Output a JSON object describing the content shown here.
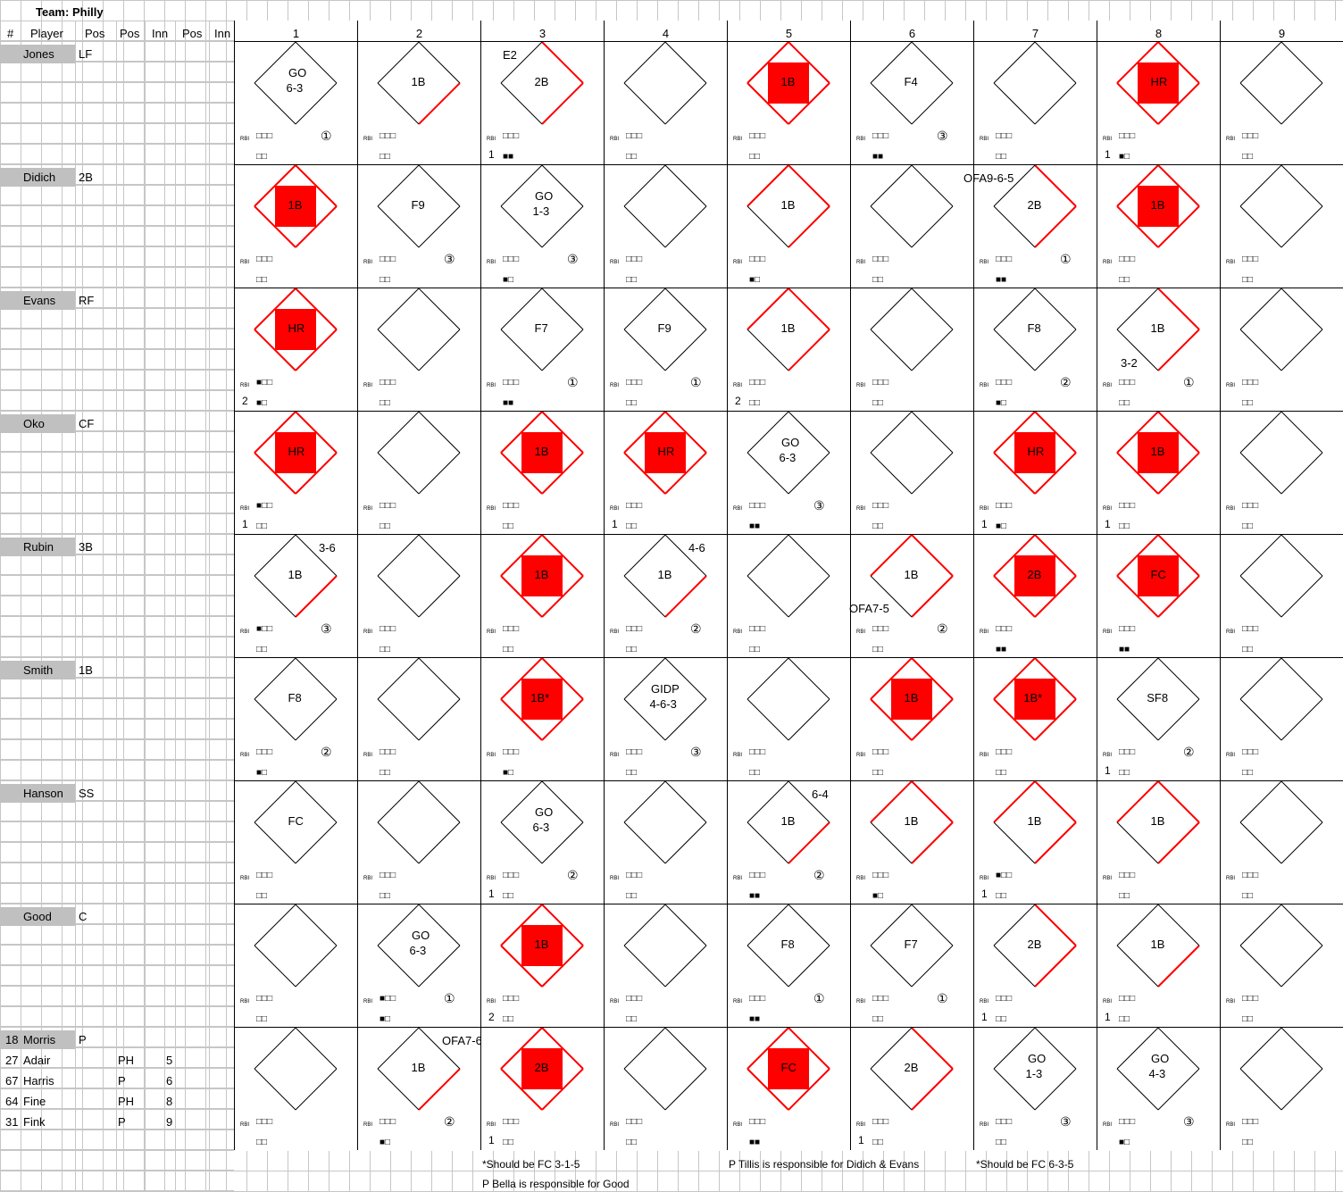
{
  "team": {
    "label": "Team:",
    "name": "Philly"
  },
  "headers": {
    "num": "#",
    "player": "Player",
    "pos1": "Pos",
    "pos2": "Pos",
    "inn1": "Inn",
    "pos3": "Pos",
    "inn2": "Inn"
  },
  "innings": [
    "1",
    "2",
    "3",
    "4",
    "5",
    "6",
    "7",
    "8",
    "9"
  ],
  "players": [
    {
      "name": "Jones",
      "pos": "LF"
    },
    {
      "name": "Didich",
      "pos": "2B"
    },
    {
      "name": "Evans",
      "pos": "RF"
    },
    {
      "name": "Oko",
      "pos": "CF"
    },
    {
      "name": "Rubin",
      "pos": "3B"
    },
    {
      "name": "Smith",
      "pos": "1B"
    },
    {
      "name": "Hanson",
      "pos": "SS"
    },
    {
      "name": "Good",
      "pos": "C"
    },
    {
      "name": "Morris",
      "num": "18",
      "pos": "P"
    }
  ],
  "subs": [
    {
      "num": "27",
      "name": "Adair",
      "pos": "PH",
      "inn": "5"
    },
    {
      "num": "67",
      "name": "Harris",
      "pos": "P",
      "inn": "6"
    },
    {
      "num": "64",
      "name": "Fine",
      "pos": "PH",
      "inn": "8"
    },
    {
      "num": "31",
      "name": "Fink",
      "pos": "P",
      "inn": "9"
    }
  ],
  "symbols": {
    "rbi": "RBI",
    "box3": "□□□",
    "box2": "□□"
  },
  "colors": {
    "red": "#ff0000",
    "header_gray": "#c0c0c0",
    "grid": "#c6c6c6"
  },
  "cells": [
    [
      {
        "l": "GO",
        "l2": "6-3",
        "out": "①"
      },
      {
        "l": "1B",
        "bases": 1
      },
      {
        "l": "2B",
        "bases": 2,
        "note": "E2",
        "strikes": "■■",
        "rbinum": "1"
      },
      {},
      {
        "l": "1B",
        "bases": 4,
        "fill": true
      },
      {
        "l": "F4",
        "out": "③",
        "strikes": "■■"
      },
      {},
      {
        "l": "HR",
        "bases": 4,
        "fill": true,
        "strikes": "■□",
        "rbinum": "1"
      },
      {}
    ],
    [
      {
        "l": "1B",
        "bases": 4,
        "fill": true
      },
      {
        "l": "F9",
        "out": "③"
      },
      {
        "l": "GO",
        "l2": "1-3",
        "out": "③",
        "strikes": "■□"
      },
      {},
      {
        "l": "1B",
        "bases": 3,
        "strikes": "■□"
      },
      {},
      {
        "l": "2B",
        "bases": 2,
        "out": "①",
        "note": "OFA9-6-5",
        "strikes": "■■"
      },
      {
        "l": "1B",
        "bases": 4,
        "fill": true
      },
      {}
    ],
    [
      {
        "l": "HR",
        "bases": 4,
        "fill": true,
        "balls": "■□□",
        "strikes": "■□",
        "rbinum": "2"
      },
      {},
      {
        "l": "F7",
        "out": "①",
        "strikes": "■■"
      },
      {
        "l": "F9",
        "out": "①"
      },
      {
        "l": "1B",
        "bases": 3,
        "rbinum": "2"
      },
      {},
      {
        "l": "F8",
        "out": "②",
        "strikes": "■□"
      },
      {
        "l": "1B",
        "bases": 2,
        "out": "①",
        "note": "3-2"
      },
      {}
    ],
    [
      {
        "l": "HR",
        "bases": 4,
        "fill": true,
        "balls": "■□□",
        "rbinum": "1"
      },
      {},
      {
        "l": "1B",
        "bases": 4,
        "fill": true
      },
      {
        "l": "HR",
        "bases": 4,
        "fill": true,
        "rbinum": "1"
      },
      {
        "l": "GO",
        "l2": "6-3",
        "out": "③",
        "strikes": "■■"
      },
      {},
      {
        "l": "HR",
        "bases": 4,
        "fill": true,
        "strikes": "■□",
        "rbinum": "1"
      },
      {
        "l": "1B",
        "bases": 4,
        "fill": true,
        "rbinum": "1"
      },
      {}
    ],
    [
      {
        "l": "1B",
        "bases": 1,
        "out": "③",
        "note": "3-6",
        "balls": "■□□"
      },
      {},
      {
        "l": "1B",
        "bases": 4,
        "fill": true
      },
      {
        "l": "1B",
        "bases": 1,
        "out": "②",
        "note": "4-6"
      },
      {},
      {
        "l": "1B",
        "bases": 3,
        "out": "②",
        "note": "OFA7-5"
      },
      {
        "l": "2B",
        "bases": 4,
        "fill": true,
        "strikes": "■■"
      },
      {
        "l": "FC",
        "bases": 4,
        "fill": true,
        "strikes": "■■"
      },
      {}
    ],
    [
      {
        "l": "F8",
        "out": "②",
        "strikes": "■□"
      },
      {},
      {
        "l": "1B*",
        "bases": 4,
        "fill": true,
        "strikes": "■□"
      },
      {
        "l": "GIDP",
        "l2": "4-6-3",
        "out": "③"
      },
      {},
      {
        "l": "1B",
        "bases": 4,
        "fill": true
      },
      {
        "l": "1B*",
        "bases": 4,
        "fill": true
      },
      {
        "l": "SF8",
        "out": "②",
        "rbinum": "1"
      },
      {}
    ],
    [
      {
        "l": "FC"
      },
      {},
      {
        "l": "GO",
        "l2": "6-3",
        "out": "②",
        "rbinum": "1"
      },
      {},
      {
        "l": "1B",
        "bases": 1,
        "out": "②",
        "note": "6-4",
        "strikes": "■■"
      },
      {
        "l": "1B",
        "bases": 3,
        "strikes": "■□"
      },
      {
        "l": "1B",
        "bases": 3,
        "balls": "■□□",
        "rbinum": "1"
      },
      {
        "l": "1B",
        "bases": 3
      },
      {}
    ],
    [
      {},
      {
        "l": "GO",
        "l2": "6-3",
        "out": "①",
        "balls": "■□□",
        "strikes": "■□"
      },
      {
        "l": "1B",
        "bases": 4,
        "fill": true,
        "rbinum": "2"
      },
      {},
      {
        "l": "F8",
        "out": "①",
        "strikes": "■■"
      },
      {
        "l": "F7",
        "out": "①"
      },
      {
        "l": "2B",
        "bases": 2,
        "rbinum": "1"
      },
      {
        "l": "1B",
        "bases": 1,
        "rbinum": "1"
      },
      {}
    ],
    [
      {},
      {
        "l": "1B",
        "bases": 1,
        "out": "②",
        "note": "OFA7-6",
        "strikes": "■□"
      },
      {
        "l": "2B",
        "bases": 4,
        "fill": true,
        "rbinum": "1"
      },
      {},
      {
        "l": "FC",
        "bases": 4,
        "fill": true,
        "strikes": "■■"
      },
      {
        "l": "2B",
        "bases": 2,
        "rbinum": "1"
      },
      {
        "l": "GO",
        "l2": "1-3",
        "out": "③"
      },
      {
        "l": "GO",
        "l2": "4-3",
        "out": "③",
        "strikes": "■□"
      },
      {}
    ]
  ],
  "footnotes": {
    "n1": "*Should be FC 3-1-5",
    "n2": "P Tillis is responsible for Didich & Evans",
    "n3": "*Should be FC 6-3-5",
    "n4": "P Bella is responsible for Good"
  }
}
